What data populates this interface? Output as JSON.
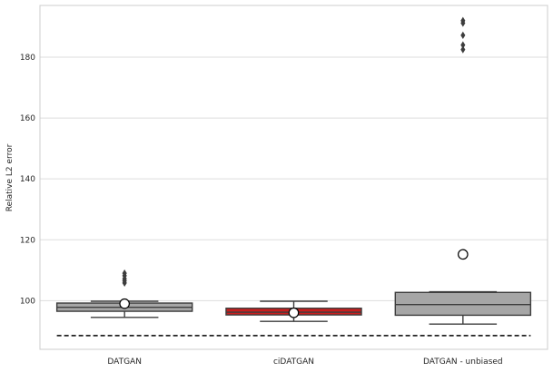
{
  "chart_data": {
    "type": "box",
    "title": "",
    "xlabel": "",
    "ylabel": "Relative L2 error",
    "categories": [
      "DATGAN",
      "ciDATGAN",
      "DATGAN - unbiased"
    ],
    "ylim": [
      84,
      197
    ],
    "yticks": [
      100,
      120,
      140,
      160,
      180
    ],
    "grid": true,
    "reference_line": {
      "value": 88.5,
      "style": "dashed"
    },
    "boxes": [
      {
        "name": "DATGAN",
        "whisker_low": 94.5,
        "q1": 96.5,
        "median": 97.8,
        "q3": 99.2,
        "whisker_high": 99.8,
        "mean": 99.0,
        "outliers": [
          105.8,
          106.5,
          107.2,
          108.2,
          109.0
        ],
        "color": "#a6a6a6"
      },
      {
        "name": "ciDATGAN",
        "whisker_low": 93.2,
        "q1": 95.3,
        "median": 96.2,
        "q3": 97.5,
        "whisker_high": 99.8,
        "mean": 96.0,
        "outliers": [],
        "color": "#c81e1e"
      },
      {
        "name": "DATGAN - unbiased",
        "whisker_low": 92.3,
        "q1": 95.2,
        "median": 98.7,
        "q3": 102.7,
        "whisker_high": 102.9,
        "mean": 115.2,
        "outliers": [
          182.5,
          184.0,
          187.2,
          191.2,
          192.0
        ],
        "color": "#a6a6a6"
      }
    ]
  }
}
